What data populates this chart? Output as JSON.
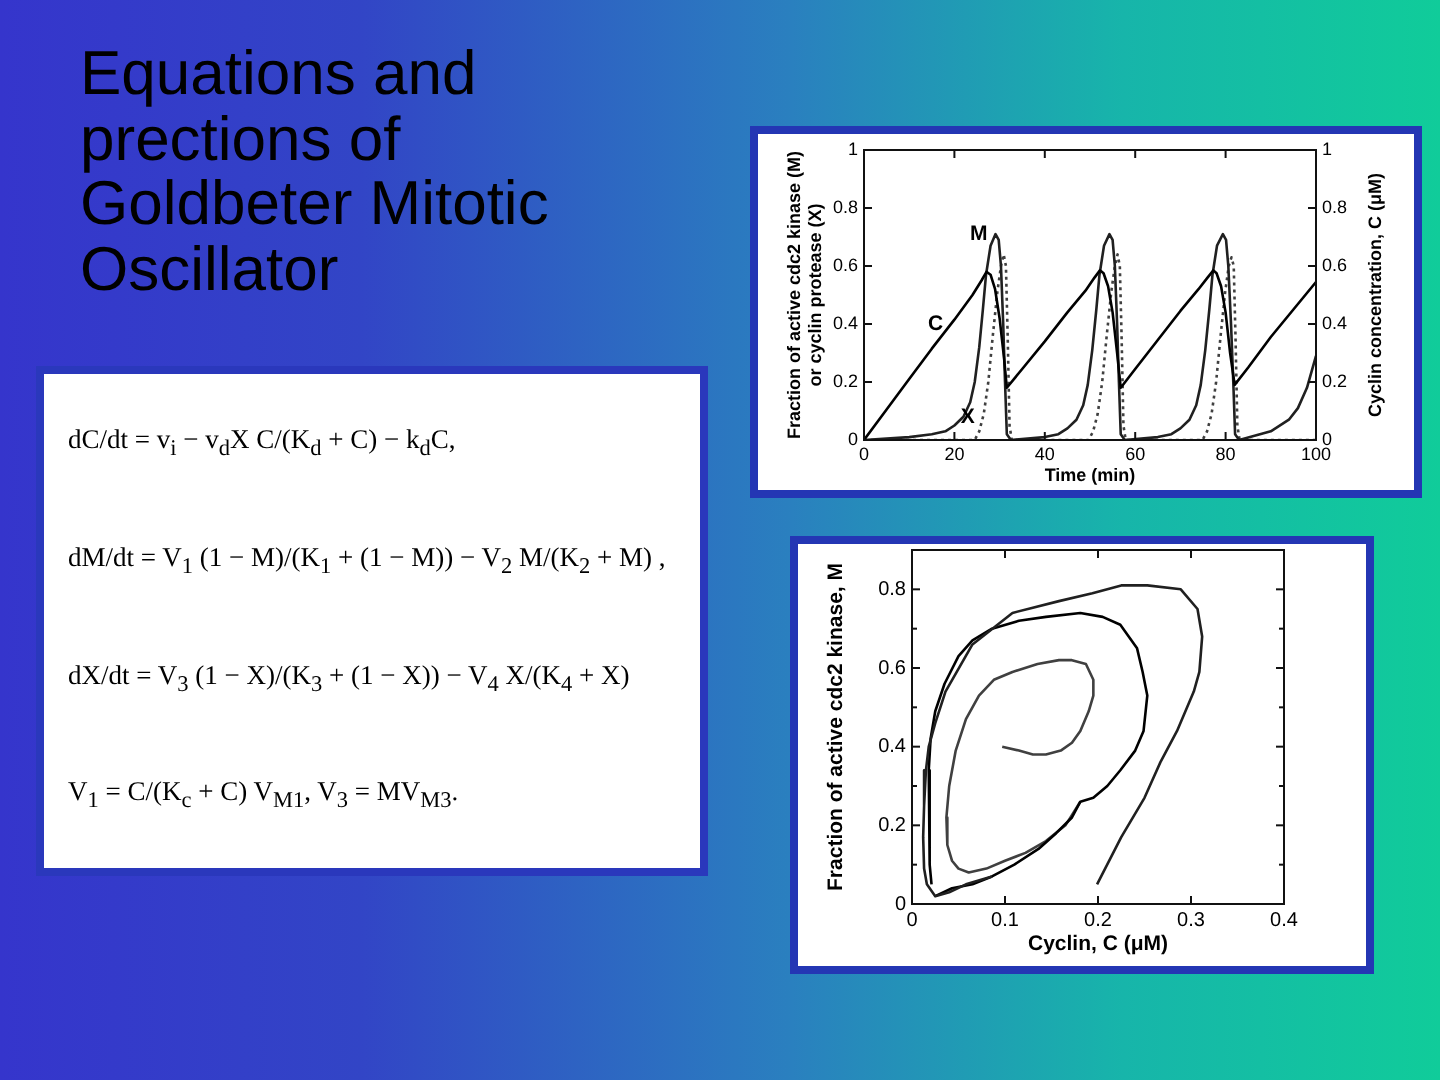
{
  "chart_data": [
    {
      "type": "other",
      "title": "Equations and prections of Goldbeter Mitotic Oscillator",
      "annotations": [
        "dC/dt = v$_{i}$ − v$_{d}$X C/(K$_{d}$ + C) − k$_{d}$C,",
        "dM/dt = V$_{1}$ (1 − M)/(K$_{1}$ + (1 − M)) − V$_{2}$ M/(K$_{2}$ + M) ,",
        "dX/dt = V$_{3}$ (1 − X)/(K$_{3}$ + (1 − X)) − V$_{4}$ X/(K$_{4}$ + X)",
        "V$_{1}$ = C/(K$_{c}$ + C) V$_{M1}$, V$_{3}$ = MV$_{M3}$."
      ]
    },
    {
      "type": "line",
      "xlabel": "Time (min)",
      "ylabel": "Fraction of active cdc2 kinase (M) or cyclin protease (X)",
      "y2label": "Cyclin concentration, C (μM)",
      "xlim": [
        0,
        100
      ],
      "xticks": [
        0,
        20,
        40,
        60,
        80,
        100
      ],
      "ylim": [
        0,
        1
      ],
      "yticks": [
        0,
        0.2,
        0.4,
        0.6,
        0.8,
        1
      ],
      "y2lim": [
        0,
        1
      ],
      "y2ticks": [
        0,
        0.2,
        0.4,
        0.6,
        0.8,
        1
      ],
      "marker": "none",
      "annotations": [
        {
          "text": "M",
          "x": 29.1,
          "y": 0.71
        },
        {
          "text": "C",
          "x": 19.3,
          "y": 0.4
        },
        {
          "text": "X",
          "x": 26.3,
          "y": 0.08
        }
      ],
      "series": [
        {
          "color": "#000000",
          "x": [
            0,
            5,
            10,
            15,
            20,
            24,
            26,
            27.1,
            28,
            29,
            30,
            31,
            31.6,
            35,
            40,
            45,
            49,
            51,
            52.2,
            53,
            54,
            55,
            56,
            56.8,
            60,
            65,
            70,
            74,
            76,
            77.3,
            78,
            79,
            80,
            81,
            82,
            85,
            90,
            95,
            100
          ],
          "values": [
            0,
            0.105,
            0.21,
            0.315,
            0.415,
            0.5,
            0.55,
            0.58,
            0.57,
            0.52,
            0.42,
            0.28,
            0.18,
            0.245,
            0.34,
            0.44,
            0.515,
            0.56,
            0.585,
            0.575,
            0.53,
            0.44,
            0.3,
            0.18,
            0.245,
            0.345,
            0.445,
            0.52,
            0.56,
            0.585,
            0.575,
            0.53,
            0.44,
            0.3,
            0.19,
            0.25,
            0.355,
            0.45,
            0.545
          ]
        },
        {
          "color": "#202020",
          "x": [
            0,
            10,
            15,
            18,
            20,
            22,
            23.5,
            24.5,
            25.5,
            26.3,
            27,
            28,
            29.1,
            29.8,
            30.3,
            30.8,
            31.2,
            31.6,
            32.5,
            40,
            43,
            45,
            47,
            48.5,
            49.5,
            50.5,
            51.4,
            52.1,
            53.1,
            54.3,
            55,
            55.5,
            56,
            56.4,
            56.8,
            57.7,
            65,
            68,
            70,
            72,
            73.5,
            74.5,
            75.5,
            76.4,
            77.1,
            78.1,
            79.4,
            80.1,
            80.6,
            81.2,
            81.7,
            82.1,
            83,
            90,
            94,
            96,
            98,
            100
          ],
          "values": [
            0,
            0.01,
            0.02,
            0.03,
            0.05,
            0.08,
            0.13,
            0.2,
            0.32,
            0.45,
            0.57,
            0.67,
            0.71,
            0.69,
            0.6,
            0.4,
            0.2,
            0.02,
            0,
            0.01,
            0.02,
            0.04,
            0.07,
            0.12,
            0.19,
            0.31,
            0.45,
            0.57,
            0.67,
            0.71,
            0.69,
            0.6,
            0.4,
            0.2,
            0.02,
            0,
            0.01,
            0.02,
            0.04,
            0.07,
            0.12,
            0.19,
            0.31,
            0.45,
            0.57,
            0.67,
            0.71,
            0.69,
            0.6,
            0.4,
            0.2,
            0.02,
            0,
            0.03,
            0.07,
            0.11,
            0.18,
            0.29
          ]
        },
        {
          "color": "#404040",
          "line_style": "dotted",
          "x": [
            0,
            24.5,
            25.5,
            26.5,
            27.5,
            28.5,
            29.5,
            30.3,
            30.9,
            31.4,
            31.8,
            32.2,
            32.7,
            49.7,
            50.7,
            51.7,
            52.7,
            53.7,
            54.7,
            55.5,
            56.1,
            56.6,
            57,
            57.4,
            57.9,
            74.9,
            75.9,
            76.9,
            77.9,
            78.9,
            79.9,
            80.7,
            81.3,
            81.8,
            82.2,
            82.6,
            83.1,
            100
          ],
          "values": [
            0,
            0,
            0.03,
            0.09,
            0.2,
            0.36,
            0.51,
            0.6,
            0.64,
            0.6,
            0.35,
            0.05,
            0,
            0,
            0.03,
            0.09,
            0.2,
            0.36,
            0.51,
            0.6,
            0.64,
            0.6,
            0.35,
            0.05,
            0,
            0,
            0.03,
            0.09,
            0.2,
            0.36,
            0.51,
            0.6,
            0.63,
            0.6,
            0.35,
            0.05,
            0,
            0
          ]
        }
      ]
    },
    {
      "type": "line",
      "xlabel": "Cyclin, C (μM)",
      "ylabel": "Fraction of active cdc2 kinase, M",
      "xlim": [
        0,
        0.4
      ],
      "xticks": [
        0,
        0.1,
        0.2,
        0.3,
        0.4
      ],
      "ylim": [
        0,
        0.9
      ],
      "yticks": [
        0,
        {
          "value": 0.1,
          "label": null
        },
        0.2,
        {
          "value": 0.3,
          "label": null
        },
        0.4,
        {
          "value": 0.5,
          "label": null
        },
        0.6,
        {
          "value": 0.7,
          "label": null
        },
        0.8
      ],
      "marker": "none",
      "series": [
        {
          "color": "#202020",
          "x": [
            0.199,
            0.225,
            0.25,
            0.267,
            0.285,
            0.303,
            0.309,
            0.312,
            0.307,
            0.289,
            0.253,
            0.225,
            0.194,
            0.158,
            0.108,
            0.065,
            0.036,
            0.025,
            0.018,
            0.015,
            0.013,
            0.012,
            0.013,
            0.016,
            0.025,
            0.04,
            0.058,
            0.086
          ],
          "values": [
            0.05,
            0.17,
            0.27,
            0.36,
            0.44,
            0.54,
            0.59,
            0.68,
            0.75,
            0.8,
            0.81,
            0.81,
            0.79,
            0.77,
            0.74,
            0.66,
            0.54,
            0.46,
            0.4,
            0.34,
            0.25,
            0.17,
            0.09,
            0.05,
            0.02,
            0.03,
            0.05,
            0.07
          ]
        },
        {
          "color": "#000000",
          "x": [
            0.025,
            0.043,
            0.065,
            0.086,
            0.11,
            0.136,
            0.155,
            0.172,
            0.181,
            0.195,
            0.21,
            0.224,
            0.24,
            0.249,
            0.253,
            0.248,
            0.242,
            0.224,
            0.205,
            0.181,
            0.144,
            0.115,
            0.086,
            0.065,
            0.05,
            0.035,
            0.025,
            0.02,
            0.018,
            0.019,
            0.021
          ],
          "values": [
            0.02,
            0.04,
            0.05,
            0.07,
            0.1,
            0.14,
            0.18,
            0.22,
            0.26,
            0.27,
            0.3,
            0.34,
            0.39,
            0.44,
            0.53,
            0.59,
            0.65,
            0.71,
            0.73,
            0.74,
            0.73,
            0.72,
            0.7,
            0.67,
            0.63,
            0.56,
            0.49,
            0.42,
            0.34,
            0.1,
            0.05
          ]
        },
        {
          "color": "#404040",
          "x": [
            0.097,
            0.115,
            0.13,
            0.144,
            0.16,
            0.172,
            0.181,
            0.19,
            0.195,
            0.195,
            0.187,
            0.172,
            0.158,
            0.135,
            0.108,
            0.088,
            0.072,
            0.058,
            0.047,
            0.04,
            0.037,
            0.038,
            0.043,
            0.05,
            0.061,
            0.08,
            0.1,
            0.122,
            0.144,
            0.165,
            0.181
          ],
          "values": [
            0.4,
            0.39,
            0.38,
            0.38,
            0.39,
            0.41,
            0.44,
            0.49,
            0.53,
            0.57,
            0.61,
            0.62,
            0.62,
            0.61,
            0.59,
            0.57,
            0.53,
            0.47,
            0.39,
            0.3,
            0.22,
            0.15,
            0.11,
            0.09,
            0.08,
            0.09,
            0.11,
            0.13,
            0.16,
            0.2,
            0.26
          ]
        }
      ]
    }
  ]
}
